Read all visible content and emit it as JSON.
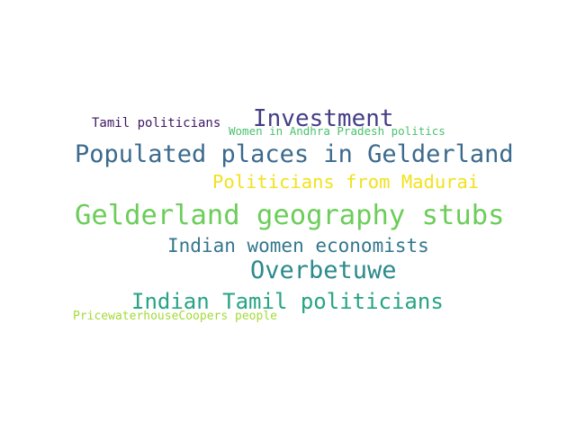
{
  "words": [
    {
      "text": "Tamil politicians",
      "color": "#3f1762"
    },
    {
      "text": "Investment",
      "color": "#433e85"
    },
    {
      "text": "Women in Andhra Pradesh politics",
      "color": "#4ac16d"
    },
    {
      "text": "Populated places in Gelderland",
      "color": "#3b6a8c"
    },
    {
      "text": "Politicians from Madurai",
      "color": "#f1e21d"
    },
    {
      "text": "Gelderland geography stubs",
      "color": "#6ccd5a"
    },
    {
      "text": "Indian women economists",
      "color": "#33768d"
    },
    {
      "text": "Overbetuwe",
      "color": "#2c8a8c"
    },
    {
      "text": "Indian Tamil politicians",
      "color": "#27a385"
    },
    {
      "text": "PricewaterhouseCoopers people",
      "color": "#a3da37"
    }
  ]
}
